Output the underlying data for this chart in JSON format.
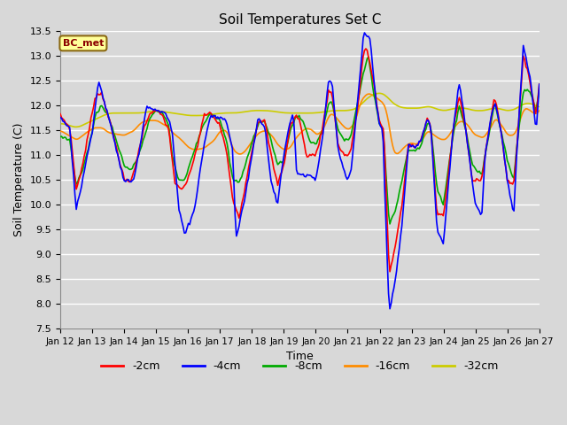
{
  "title": "Soil Temperatures Set C",
  "xlabel": "Time",
  "ylabel": "Soil Temperature (C)",
  "ylim": [
    7.5,
    13.5
  ],
  "yticks": [
    7.5,
    8.0,
    8.5,
    9.0,
    9.5,
    10.0,
    10.5,
    11.0,
    11.5,
    12.0,
    12.5,
    13.0,
    13.5
  ],
  "x_labels": [
    "Jan 12",
    "Jan 13",
    "Jan 14",
    "Jan 15",
    "Jan 16",
    "Jan 17",
    "Jan 18",
    "Jan 19",
    "Jan 20",
    "Jan 21",
    "Jan 22",
    "Jan 23",
    "Jan 24",
    "Jan 25",
    "Jan 26",
    "Jan 27"
  ],
  "background_color": "#d8d8d8",
  "plot_bg_color": "#d8d8d8",
  "grid_color": "#ffffff",
  "annotation_text": "BC_met",
  "annotation_color": "#8b0000",
  "annotation_bg": "#ffff99",
  "annotation_border": "#8b6914",
  "line_colors": {
    "-2cm": "#ff0000",
    "-4cm": "#0000ff",
    "-8cm": "#00aa00",
    "-16cm": "#ff8c00",
    "-32cm": "#cccc00"
  },
  "line_widths": {
    "-2cm": 1.2,
    "-4cm": 1.2,
    "-8cm": 1.2,
    "-16cm": 1.2,
    "-32cm": 1.2
  },
  "figsize": [
    6.4,
    4.8
  ],
  "dpi": 100
}
